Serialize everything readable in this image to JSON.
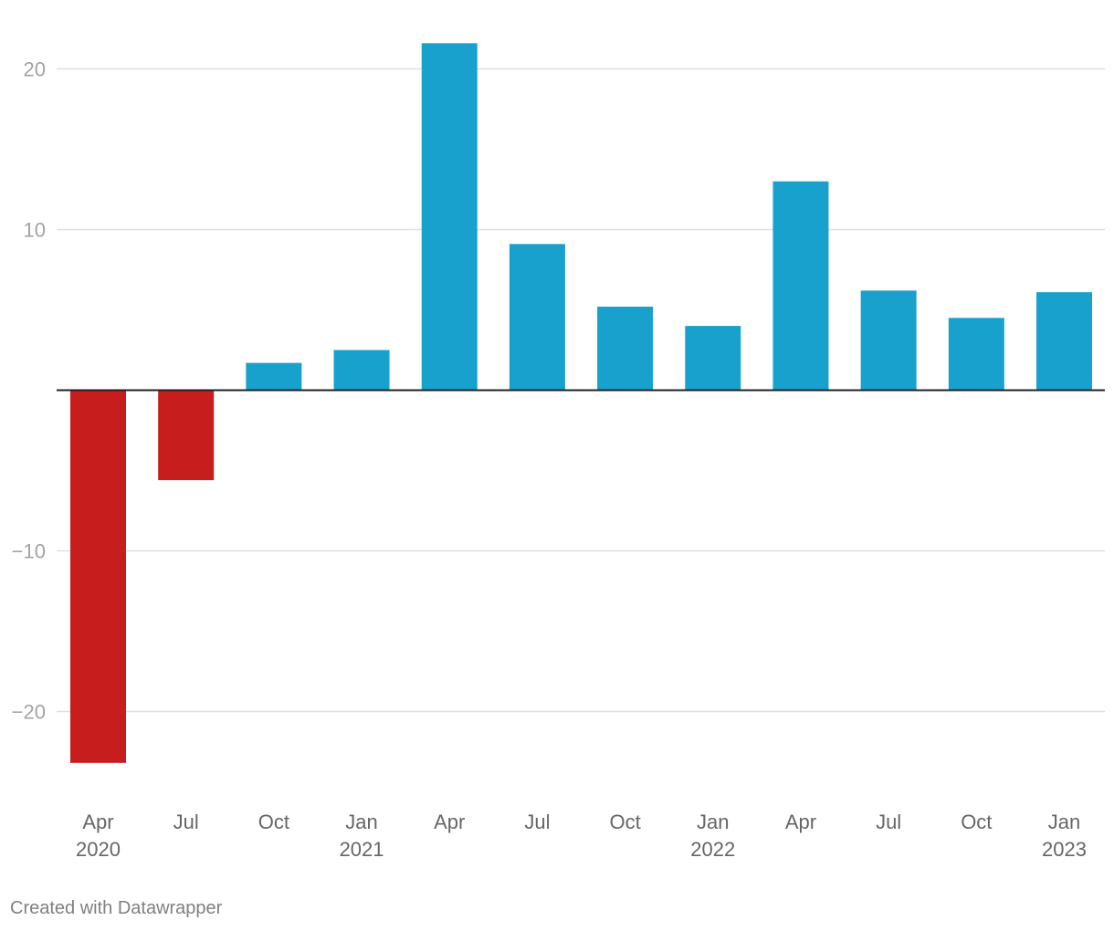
{
  "chart_data": {
    "type": "bar",
    "categories": [
      {
        "month": "Apr",
        "year": "2020"
      },
      {
        "month": "Jul",
        "year": ""
      },
      {
        "month": "Oct",
        "year": ""
      },
      {
        "month": "Jan",
        "year": "2021"
      },
      {
        "month": "Apr",
        "year": ""
      },
      {
        "month": "Jul",
        "year": ""
      },
      {
        "month": "Oct",
        "year": ""
      },
      {
        "month": "Jan",
        "year": "2022"
      },
      {
        "month": "Apr",
        "year": ""
      },
      {
        "month": "Jul",
        "year": ""
      },
      {
        "month": "Oct",
        "year": ""
      },
      {
        "month": "Jan",
        "year": "2023"
      }
    ],
    "values": [
      -23.2,
      -5.6,
      1.7,
      2.5,
      21.6,
      9.1,
      5.2,
      4.0,
      13.0,
      6.2,
      4.5,
      6.1
    ],
    "yticks": [
      20,
      10,
      -10,
      -20
    ],
    "ytick_labels": [
      "20",
      "10",
      "−10",
      "−20"
    ],
    "ylim": [
      -25,
      24
    ],
    "grid": true,
    "colors": {
      "positive": "#18a1cd",
      "negative": "#c71e1d",
      "grid": "#e0e0e0",
      "zero_line": "#222222"
    }
  },
  "footer": {
    "credit": "Created with Datawrapper"
  }
}
